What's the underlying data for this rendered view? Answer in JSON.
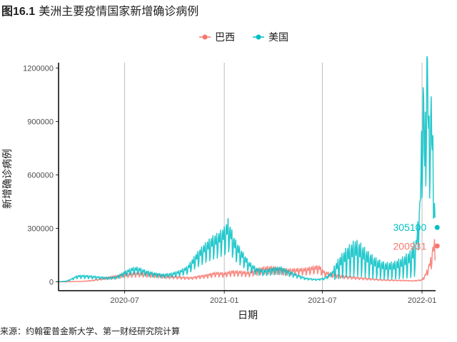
{
  "figure": {
    "number": "图16.1",
    "title": "美洲主要疫情国家新增确诊病例",
    "source": "来源：约翰霍普金斯大学、第一财经研究院计算"
  },
  "chart_data": {
    "type": "line",
    "title": "",
    "xlabel": "日期",
    "ylabel": "新增确诊病例",
    "x_ticks": [
      "2020-07",
      "2021-01",
      "2021-07",
      "2022-01"
    ],
    "xlim": [
      "2020-03-01",
      "2022-01-26"
    ],
    "y_ticks": [
      "0",
      "300000",
      "600000",
      "900000",
      "1200000"
    ],
    "ylim": [
      -50000,
      1230000
    ],
    "grid": "vertical major lines at x ticks",
    "legend_position": "top",
    "series": [
      {
        "name": "巴西",
        "color": "#F8766D",
        "end_label": "200931",
        "end_value": 200931,
        "points": [
          [
            "2020-03-01",
            0
          ],
          [
            "2020-03-20",
            300
          ],
          [
            "2020-04-10",
            2000
          ],
          [
            "2020-04-30",
            6000
          ],
          [
            "2020-05-20",
            16000
          ],
          [
            "2020-06-10",
            28000
          ],
          [
            "2020-06-20",
            32000
          ],
          [
            "2020-06-28",
            38000
          ],
          [
            "2020-07-15",
            42000
          ],
          [
            "2020-07-31",
            45000
          ],
          [
            "2020-08-15",
            40000
          ],
          [
            "2020-09-01",
            36000
          ],
          [
            "2020-09-15",
            30000
          ],
          [
            "2020-10-01",
            27000
          ],
          [
            "2020-10-15",
            23000
          ],
          [
            "2020-11-01",
            21000
          ],
          [
            "2020-11-15",
            28000
          ],
          [
            "2020-12-01",
            35000
          ],
          [
            "2020-12-15",
            45000
          ],
          [
            "2021-01-01",
            42000
          ],
          [
            "2021-01-15",
            52000
          ],
          [
            "2021-02-01",
            50000
          ],
          [
            "2021-02-15",
            46000
          ],
          [
            "2021-03-01",
            60000
          ],
          [
            "2021-03-15",
            70000
          ],
          [
            "2021-04-01",
            72000
          ],
          [
            "2021-04-15",
            64000
          ],
          [
            "2021-05-01",
            60000
          ],
          [
            "2021-05-15",
            62000
          ],
          [
            "2021-06-01",
            64000
          ],
          [
            "2021-06-15",
            73000
          ],
          [
            "2021-06-25",
            76000
          ],
          [
            "2021-07-05",
            48000
          ],
          [
            "2021-07-20",
            40000
          ],
          [
            "2021-08-01",
            32000
          ],
          [
            "2021-08-15",
            27000
          ],
          [
            "2021-09-01",
            22000
          ],
          [
            "2021-09-15",
            18000
          ],
          [
            "2021-10-01",
            15000
          ],
          [
            "2021-10-15",
            11000
          ],
          [
            "2021-11-01",
            9000
          ],
          [
            "2021-11-15",
            8000
          ],
          [
            "2021-12-01",
            7000
          ],
          [
            "2021-12-15",
            5000
          ],
          [
            "2022-01-01",
            10000
          ],
          [
            "2022-01-08",
            40000
          ],
          [
            "2022-01-13",
            75000
          ],
          [
            "2022-01-18",
            120000
          ],
          [
            "2022-01-22",
            180000
          ],
          [
            "2022-01-25",
            200931
          ]
        ]
      },
      {
        "name": "美国",
        "color": "#00BFC4",
        "end_label": "305100",
        "end_value": 305100,
        "points": [
          [
            "2020-03-01",
            0
          ],
          [
            "2020-03-15",
            3000
          ],
          [
            "2020-03-25",
            15000
          ],
          [
            "2020-04-05",
            30000
          ],
          [
            "2020-04-15",
            31000
          ],
          [
            "2020-05-01",
            28000
          ],
          [
            "2020-05-15",
            24000
          ],
          [
            "2020-06-01",
            21000
          ],
          [
            "2020-06-15",
            24000
          ],
          [
            "2020-07-01",
            48000
          ],
          [
            "2020-07-15",
            66000
          ],
          [
            "2020-07-25",
            68000
          ],
          [
            "2020-08-10",
            52000
          ],
          [
            "2020-08-25",
            42000
          ],
          [
            "2020-09-10",
            36000
          ],
          [
            "2020-09-25",
            40000
          ],
          [
            "2020-10-10",
            52000
          ],
          [
            "2020-10-25",
            72000
          ],
          [
            "2020-11-10",
            130000
          ],
          [
            "2020-11-25",
            175000
          ],
          [
            "2020-12-10",
            210000
          ],
          [
            "2020-12-20",
            225000
          ],
          [
            "2021-01-02",
            255000
          ],
          [
            "2021-01-08",
            290000
          ],
          [
            "2021-01-20",
            200000
          ],
          [
            "2021-02-01",
            150000
          ],
          [
            "2021-02-15",
            95000
          ],
          [
            "2021-03-01",
            65000
          ],
          [
            "2021-03-15",
            55000
          ],
          [
            "2021-04-01",
            65000
          ],
          [
            "2021-04-15",
            70000
          ],
          [
            "2021-05-01",
            50000
          ],
          [
            "2021-05-15",
            35000
          ],
          [
            "2021-06-01",
            18000
          ],
          [
            "2021-06-20",
            12000
          ],
          [
            "2021-07-05",
            18000
          ],
          [
            "2021-07-20",
            50000
          ],
          [
            "2021-08-01",
            95000
          ],
          [
            "2021-08-15",
            135000
          ],
          [
            "2021-08-31",
            165000
          ],
          [
            "2021-09-10",
            150000
          ],
          [
            "2021-09-25",
            115000
          ],
          [
            "2021-10-10",
            90000
          ],
          [
            "2021-10-25",
            75000
          ],
          [
            "2021-11-10",
            78000
          ],
          [
            "2021-11-25",
            95000
          ],
          [
            "2021-12-10",
            120000
          ],
          [
            "2021-12-20",
            170000
          ],
          [
            "2021-12-28",
            380000
          ],
          [
            "2022-01-03",
            1000000
          ],
          [
            "2022-01-06",
            650000
          ],
          [
            "2022-01-10",
            1160000
          ],
          [
            "2022-01-14",
            760000
          ],
          [
            "2022-01-18",
            880000
          ],
          [
            "2022-01-22",
            600000
          ],
          [
            "2022-01-25",
            305100
          ]
        ]
      }
    ]
  }
}
